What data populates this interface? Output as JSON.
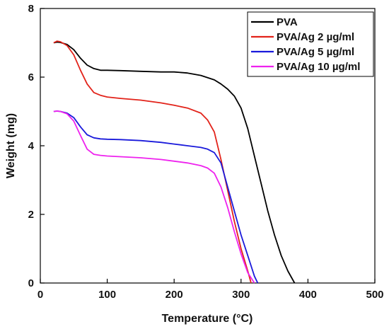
{
  "chart_data": {
    "type": "line",
    "title": "",
    "xlabel": "Temperature (°C)",
    "ylabel": "Weight (mg)",
    "xlim": [
      0,
      500
    ],
    "ylim": [
      0,
      8
    ],
    "xticks": [
      0,
      100,
      200,
      300,
      400,
      500
    ],
    "yticks": [
      0,
      2,
      4,
      6,
      8
    ],
    "grid": false,
    "legend_position": "top-right",
    "series": [
      {
        "name": "PVA",
        "color": "#000000",
        "x": [
          20,
          25,
          30,
          40,
          50,
          60,
          70,
          80,
          90,
          100,
          120,
          150,
          180,
          200,
          220,
          240,
          260,
          270,
          280,
          290,
          300,
          310,
          320,
          330,
          340,
          350,
          360,
          370,
          380
        ],
        "y": [
          7.0,
          7.02,
          7.01,
          6.95,
          6.8,
          6.55,
          6.35,
          6.25,
          6.2,
          6.2,
          6.19,
          6.17,
          6.15,
          6.15,
          6.12,
          6.05,
          5.92,
          5.8,
          5.65,
          5.45,
          5.1,
          4.5,
          3.7,
          2.9,
          2.1,
          1.4,
          0.8,
          0.35,
          0.0
        ]
      },
      {
        "name": "PVA/Ag 2 µg/ml",
        "color": "#e2231a",
        "x": [
          20,
          25,
          30,
          40,
          50,
          60,
          70,
          80,
          90,
          100,
          120,
          150,
          180,
          200,
          220,
          240,
          250,
          260,
          270,
          280,
          290,
          300,
          310,
          315
        ],
        "y": [
          7.0,
          7.05,
          7.03,
          6.92,
          6.65,
          6.2,
          5.8,
          5.55,
          5.47,
          5.42,
          5.38,
          5.33,
          5.25,
          5.18,
          5.1,
          4.95,
          4.75,
          4.4,
          3.6,
          2.7,
          1.8,
          1.0,
          0.35,
          0.0
        ]
      },
      {
        "name": "PVA/Ag 5 µg/ml",
        "color": "#1a1adb",
        "x": [
          20,
          25,
          30,
          40,
          50,
          60,
          70,
          80,
          90,
          100,
          120,
          150,
          180,
          200,
          220,
          240,
          250,
          260,
          270,
          280,
          290,
          300,
          310,
          320,
          325
        ],
        "y": [
          5.0,
          5.01,
          5.0,
          4.95,
          4.82,
          4.55,
          4.32,
          4.23,
          4.2,
          4.19,
          4.18,
          4.15,
          4.1,
          4.05,
          4.0,
          3.95,
          3.9,
          3.8,
          3.5,
          2.8,
          2.1,
          1.4,
          0.8,
          0.2,
          0.0
        ]
      },
      {
        "name": "PVA/Ag 10 µg/ml",
        "color": "#ee22ee",
        "x": [
          20,
          25,
          30,
          40,
          50,
          60,
          70,
          80,
          90,
          100,
          120,
          150,
          180,
          200,
          220,
          240,
          250,
          260,
          270,
          280,
          290,
          300,
          310,
          320
        ],
        "y": [
          5.0,
          5.01,
          5.0,
          4.93,
          4.72,
          4.3,
          3.9,
          3.75,
          3.72,
          3.7,
          3.68,
          3.65,
          3.6,
          3.55,
          3.5,
          3.42,
          3.35,
          3.2,
          2.8,
          2.2,
          1.5,
          0.85,
          0.3,
          0.0
        ]
      }
    ]
  }
}
